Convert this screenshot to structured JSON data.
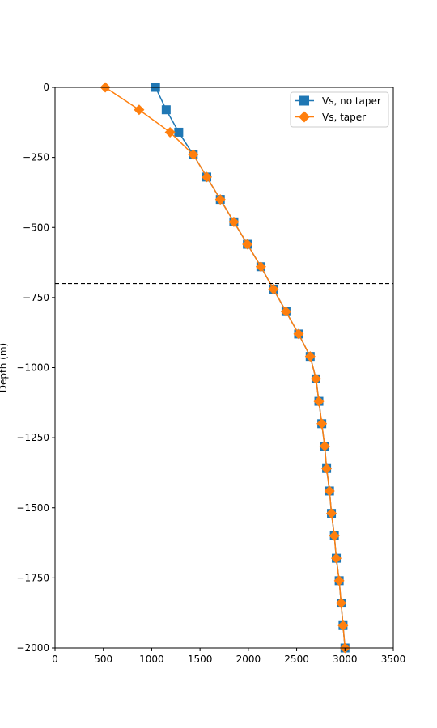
{
  "chart_data": {
    "type": "line",
    "title": "",
    "xlabel": "",
    "ylabel": "Depth (m)",
    "xlim": [
      0,
      3500
    ],
    "ylim": [
      -2000,
      0
    ],
    "xticks": [
      0,
      500,
      1000,
      1500,
      2000,
      2500,
      3000,
      3500
    ],
    "yticks": [
      0,
      -250,
      -500,
      -750,
      -1000,
      -1250,
      -1500,
      -1750,
      -2000
    ],
    "grid": false,
    "legend_position": "top-right",
    "reference_line": {
      "y": -700,
      "style": "dashed",
      "color": "#000000"
    },
    "series": [
      {
        "name": "Vs, no taper",
        "color": "#1f77b4",
        "marker": "square",
        "points": [
          {
            "x": 1040,
            "y": 0
          },
          {
            "x": 1150,
            "y": -80
          },
          {
            "x": 1280,
            "y": -160
          },
          {
            "x": 1430,
            "y": -240
          },
          {
            "x": 1570,
            "y": -320
          },
          {
            "x": 1710,
            "y": -400
          },
          {
            "x": 1850,
            "y": -480
          },
          {
            "x": 1990,
            "y": -560
          },
          {
            "x": 2130,
            "y": -640
          },
          {
            "x": 2260,
            "y": -720
          },
          {
            "x": 2390,
            "y": -800
          },
          {
            "x": 2520,
            "y": -880
          },
          {
            "x": 2640,
            "y": -960
          },
          {
            "x": 2700,
            "y": -1040
          },
          {
            "x": 2730,
            "y": -1120
          },
          {
            "x": 2760,
            "y": -1200
          },
          {
            "x": 2790,
            "y": -1280
          },
          {
            "x": 2810,
            "y": -1360
          },
          {
            "x": 2840,
            "y": -1440
          },
          {
            "x": 2860,
            "y": -1520
          },
          {
            "x": 2890,
            "y": -1600
          },
          {
            "x": 2910,
            "y": -1680
          },
          {
            "x": 2940,
            "y": -1760
          },
          {
            "x": 2960,
            "y": -1840
          },
          {
            "x": 2980,
            "y": -1920
          },
          {
            "x": 3000,
            "y": -2000
          }
        ]
      },
      {
        "name": "Vs, taper",
        "color": "#ff7f0e",
        "marker": "diamond",
        "points": [
          {
            "x": 520,
            "y": 0
          },
          {
            "x": 870,
            "y": -80
          },
          {
            "x": 1190,
            "y": -160
          },
          {
            "x": 1430,
            "y": -240
          },
          {
            "x": 1570,
            "y": -320
          },
          {
            "x": 1710,
            "y": -400
          },
          {
            "x": 1850,
            "y": -480
          },
          {
            "x": 1990,
            "y": -560
          },
          {
            "x": 2130,
            "y": -640
          },
          {
            "x": 2260,
            "y": -720
          },
          {
            "x": 2390,
            "y": -800
          },
          {
            "x": 2520,
            "y": -880
          },
          {
            "x": 2640,
            "y": -960
          },
          {
            "x": 2700,
            "y": -1040
          },
          {
            "x": 2730,
            "y": -1120
          },
          {
            "x": 2760,
            "y": -1200
          },
          {
            "x": 2790,
            "y": -1280
          },
          {
            "x": 2810,
            "y": -1360
          },
          {
            "x": 2840,
            "y": -1440
          },
          {
            "x": 2860,
            "y": -1520
          },
          {
            "x": 2890,
            "y": -1600
          },
          {
            "x": 2910,
            "y": -1680
          },
          {
            "x": 2940,
            "y": -1760
          },
          {
            "x": 2960,
            "y": -1840
          },
          {
            "x": 2980,
            "y": -1920
          },
          {
            "x": 3000,
            "y": -2000
          }
        ]
      }
    ]
  }
}
